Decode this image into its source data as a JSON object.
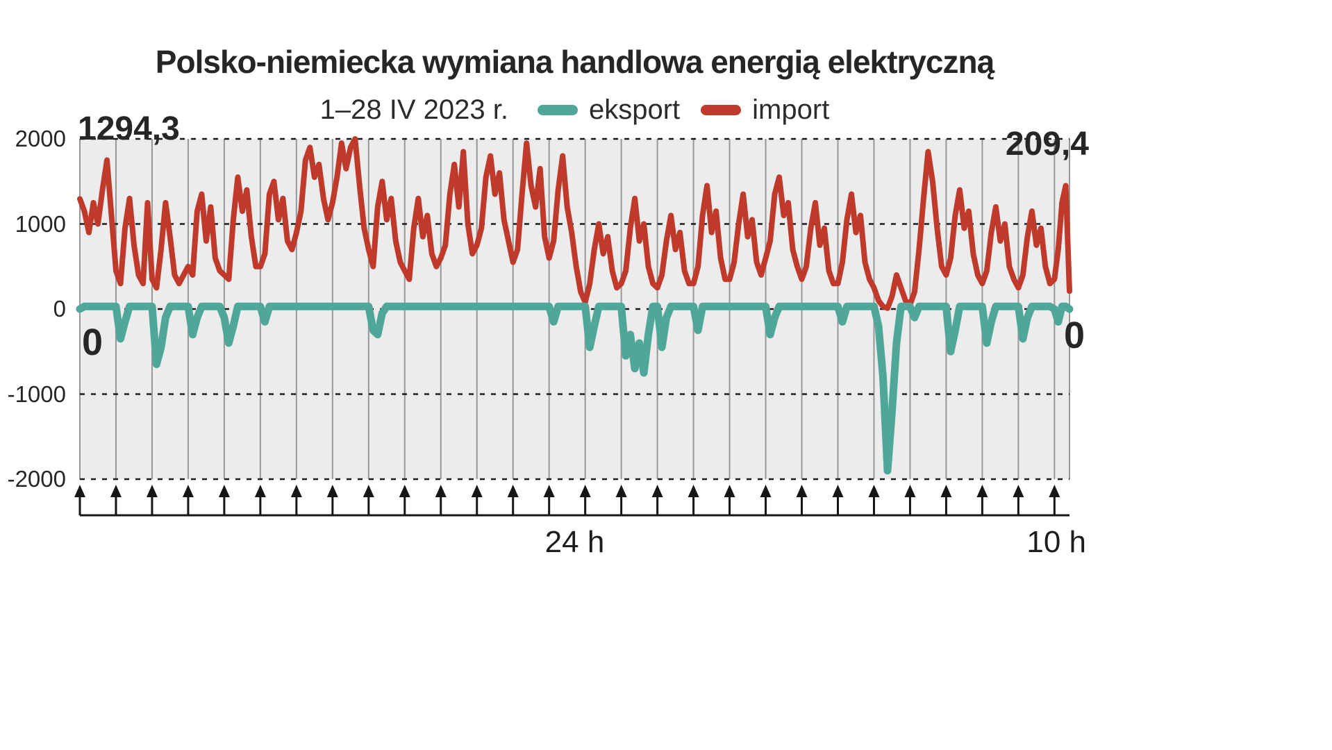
{
  "title": "Polsko-niemiecka wymiana handlowa energią elektryczną",
  "subtitle": "1–28 IV 2023 r.",
  "legend": [
    {
      "label": "eksport",
      "color": "#4fa79a"
    },
    {
      "label": "import",
      "color": "#bf3a2a"
    }
  ],
  "annotations": {
    "first_import": "1294,3",
    "first_export": "0",
    "last_import": "209,4",
    "last_export": "0"
  },
  "footer": {
    "center_label": "24 h",
    "right_label": "10 h"
  },
  "colors": {
    "plot_bg": "#ececec",
    "day_line": "#979797",
    "grid": "#1b1b1b",
    "axis_arrow": "#161616",
    "text": "#262626",
    "export_teal": "#4fa79a",
    "import_red": "#bf3a2a"
  },
  "chart_data": {
    "type": "line",
    "title": "Polsko-niemiecka wymiana handlowa energią elektryczną",
    "subtitle": "1–28 IV 2023 r.",
    "days": 28,
    "last_day_hours": 10,
    "interval_labels": [
      "24 h",
      "10 h"
    ],
    "ylim": [
      -2000,
      2000
    ],
    "yticks": [
      2000,
      1000,
      0,
      -1000,
      -2000
    ],
    "grid": "dashed horizontal lines, solid vertical line at each day boundary",
    "legend_position": "top",
    "values_note": "values approximate, read from chart; sampled ~every 3 h",
    "endpoints": {
      "import_first": 1294.3,
      "export_first": 0,
      "import_last": 209.4,
      "export_last": 0
    },
    "series": [
      {
        "name": "import",
        "color": "#bf3a2a",
        "values_by_day": [
          [
            1294.3,
            1150,
            900,
            1250,
            1000,
            1400,
            1750,
            1100
          ],
          [
            450,
            300,
            950,
            1300,
            750,
            400,
            300,
            1250
          ],
          [
            350,
            250,
            700,
            1250,
            850,
            400,
            300,
            400
          ],
          [
            500,
            400,
            1150,
            1350,
            800,
            1200,
            600,
            450
          ],
          [
            400,
            350,
            1050,
            1550,
            1150,
            1400,
            850,
            500
          ],
          [
            500,
            650,
            1350,
            1500,
            1050,
            1300,
            800,
            700
          ],
          [
            900,
            1150,
            1750,
            1900,
            1550,
            1700,
            1300,
            1050
          ],
          [
            1250,
            1550,
            1950,
            1650,
            1900,
            2000,
            1450,
            950
          ],
          [
            700,
            500,
            1200,
            1500,
            1050,
            1300,
            800,
            550
          ],
          [
            450,
            350,
            950,
            1300,
            850,
            1100,
            650,
            500
          ],
          [
            600,
            750,
            1350,
            1700,
            1200,
            1850,
            1000,
            650
          ],
          [
            750,
            950,
            1550,
            1800,
            1350,
            1600,
            1050,
            800
          ],
          [
            550,
            700,
            1350,
            1950,
            1450,
            1200,
            1650,
            850
          ],
          [
            600,
            800,
            1400,
            1800,
            1200,
            900,
            500,
            200
          ],
          [
            80,
            300,
            700,
            1000,
            650,
            850,
            450,
            250
          ],
          [
            300,
            450,
            950,
            1300,
            800,
            1000,
            500,
            300
          ],
          [
            250,
            400,
            800,
            1100,
            700,
            900,
            450,
            300
          ],
          [
            300,
            500,
            1100,
            1450,
            900,
            1150,
            600,
            350
          ],
          [
            350,
            550,
            1000,
            1350,
            850,
            1050,
            550,
            400
          ],
          [
            600,
            800,
            1350,
            1550,
            1100,
            1250,
            700,
            500
          ],
          [
            350,
            500,
            950,
            1250,
            750,
            950,
            450,
            300
          ],
          [
            300,
            550,
            1050,
            1350,
            900,
            1100,
            550,
            350
          ],
          [
            250,
            100,
            30,
            10,
            150,
            400,
            250,
            100
          ],
          [
            50,
            200,
            700,
            1300,
            1850,
            1500,
            950,
            500
          ],
          [
            400,
            600,
            1100,
            1400,
            950,
            1150,
            650,
            400
          ],
          [
            300,
            450,
            900,
            1200,
            800,
            1000,
            500,
            350
          ],
          [
            250,
            400,
            850,
            1150,
            750,
            950,
            500,
            300
          ],
          [
            350,
            700,
            1250,
            1450,
            209.4
          ]
        ]
      },
      {
        "name": "eksport",
        "color": "#4fa79a",
        "values_by_day": [
          [
            0,
            30,
            30,
            30,
            30,
            30,
            30,
            30
          ],
          [
            30,
            -350,
            -150,
            30,
            30,
            30,
            30,
            30
          ],
          [
            30,
            -650,
            -450,
            -100,
            30,
            30,
            30,
            30
          ],
          [
            30,
            -300,
            -100,
            30,
            30,
            30,
            30,
            30
          ],
          [
            -100,
            -400,
            -200,
            30,
            30,
            30,
            30,
            30
          ],
          [
            30,
            -150,
            30,
            30,
            30,
            30,
            30,
            30
          ],
          [
            30,
            30,
            30,
            30,
            30,
            30,
            30,
            30
          ],
          [
            30,
            30,
            30,
            30,
            30,
            30,
            30,
            30
          ],
          [
            30,
            -250,
            -300,
            -50,
            30,
            30,
            30,
            30
          ],
          [
            30,
            30,
            30,
            30,
            30,
            30,
            30,
            30
          ],
          [
            30,
            30,
            30,
            30,
            30,
            30,
            30,
            30
          ],
          [
            30,
            30,
            30,
            30,
            30,
            30,
            30,
            30
          ],
          [
            30,
            30,
            30,
            30,
            30,
            30,
            30,
            30
          ],
          [
            30,
            -150,
            30,
            30,
            30,
            30,
            30,
            30
          ],
          [
            30,
            -450,
            -200,
            30,
            30,
            30,
            30,
            30
          ],
          [
            30,
            -550,
            -300,
            -700,
            -400,
            -750,
            -300,
            30
          ],
          [
            30,
            -450,
            -100,
            30,
            30,
            30,
            30,
            30
          ],
          [
            30,
            -250,
            30,
            30,
            30,
            30,
            30,
            30
          ],
          [
            30,
            30,
            30,
            30,
            30,
            30,
            30,
            30
          ],
          [
            30,
            -300,
            -100,
            30,
            30,
            30,
            30,
            30
          ],
          [
            30,
            30,
            30,
            30,
            30,
            30,
            30,
            30
          ],
          [
            30,
            -150,
            30,
            30,
            30,
            30,
            30,
            30
          ],
          [
            30,
            -200,
            -800,
            -1900,
            -1200,
            -400,
            30,
            30
          ],
          [
            30,
            -100,
            30,
            30,
            30,
            30,
            30,
            30
          ],
          [
            30,
            -500,
            -250,
            30,
            30,
            30,
            30,
            30
          ],
          [
            30,
            -400,
            -150,
            30,
            30,
            30,
            30,
            30
          ],
          [
            30,
            -350,
            -100,
            30,
            30,
            30,
            30,
            30
          ],
          [
            0,
            -150,
            30,
            30,
            0
          ]
        ]
      }
    ]
  }
}
